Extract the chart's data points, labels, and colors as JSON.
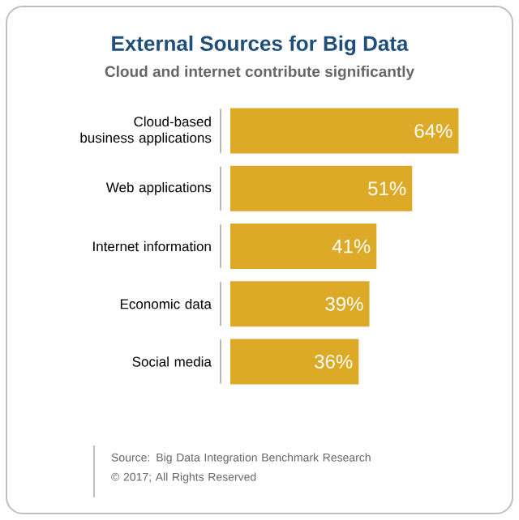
{
  "chart_data": {
    "type": "bar",
    "orientation": "horizontal",
    "title": "External Sources for Big Data",
    "subtitle": "Cloud and internet contribute significantly",
    "categories": [
      "Cloud-based business applications",
      "Web applications",
      "Internet information",
      "Economic data",
      "Social media"
    ],
    "values": [
      64,
      51,
      41,
      39,
      36
    ],
    "value_labels": [
      "64%",
      "51%",
      "41%",
      "39%",
      "36%"
    ],
    "color": "#dcaa27",
    "tick_labels": "y",
    "annotations": [
      "Source: Big Data Integration Benchmark Research",
      "© 2017; All Rights Reserved"
    ]
  }
}
